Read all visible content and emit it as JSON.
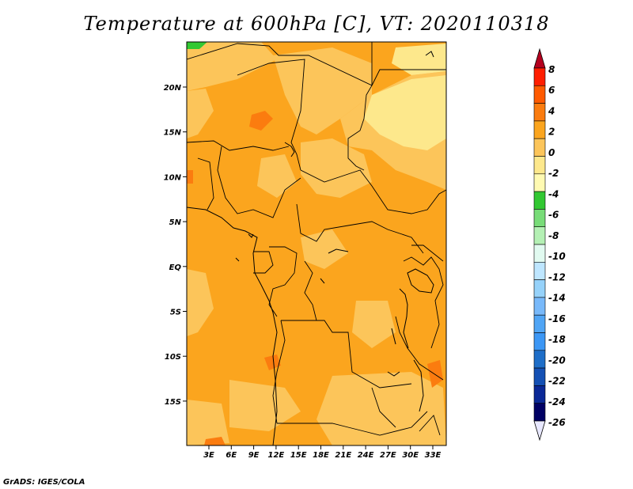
{
  "title": "Temperature at 600hPa [C], VT: 2020110318",
  "credit": "GrADS: IGES/COLA",
  "map": {
    "lat_labels": [
      "20N",
      "15N",
      "10N",
      "5N",
      "EQ",
      "5S",
      "10S",
      "15S"
    ],
    "lon_labels": [
      "3E",
      "6E",
      "9E",
      "12E",
      "15E",
      "18E",
      "21E",
      "24E",
      "27E",
      "30E",
      "33E"
    ],
    "base_color": "#fba51e"
  },
  "colorbar": {
    "labels": [
      "8",
      "6",
      "4",
      "2",
      "0",
      "-2",
      "-4",
      "-6",
      "-8",
      "-10",
      "-12",
      "-14",
      "-16",
      "-18",
      "-20",
      "-22",
      "-24",
      "-26"
    ],
    "colors": [
      "#ff1e00",
      "#ff5a00",
      "#fb7c0f",
      "#fba51e",
      "#fcc55a",
      "#fde88c",
      "#fffab2",
      "#32c832",
      "#78dc78",
      "#b4f0b4",
      "#e1faf0",
      "#bee6ff",
      "#96d2fa",
      "#78b9fa",
      "#50a5f5",
      "#3c97f5",
      "#1e6ec8",
      "#1450b4",
      "#0a2896",
      "#000064"
    ],
    "top_color": "#b4001e",
    "bottom_color": "#e8e8ff"
  }
}
